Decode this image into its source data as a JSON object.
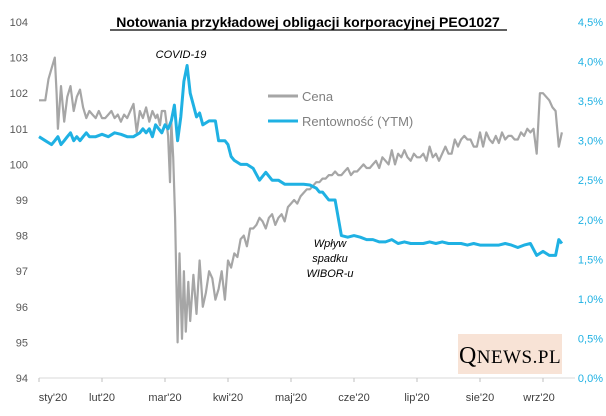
{
  "chart_data": {
    "type": "line",
    "title": "Notowania  przykładowej  obligacji  korporacyjnej  PEO1027",
    "x_ticks": [
      "sty'20",
      "lut'20",
      "mar'20",
      "kwi'20",
      "maj'20",
      "cze'20",
      "lip'20",
      "sie'20",
      "wrz'20"
    ],
    "y_left": {
      "ticks": [
        "94",
        "95",
        "96",
        "97",
        "98",
        "99",
        "100",
        "101",
        "102",
        "103",
        "104"
      ],
      "ylim": [
        94,
        104
      ]
    },
    "y_right": {
      "ticks": [
        "0,0%",
        "0,5%",
        "1,0%",
        "1,5%",
        "2,0%",
        "2,5%",
        "3,0%",
        "3,5%",
        "4,0%",
        "4,5%"
      ],
      "ylim": [
        0,
        4.5
      ]
    },
    "grid": false,
    "legend_position": "upper-center-right",
    "annotations": [
      {
        "lines": [
          "COVID-19"
        ]
      },
      {
        "lines": [
          "Wpływ",
          "spadku",
          "WIBOR-u"
        ]
      }
    ],
    "series": [
      {
        "name": "Cena",
        "axis": "left",
        "color": "#a6a6a6",
        "x": [
          0,
          0.1,
          0.15,
          0.2,
          0.25,
          0.28,
          0.3,
          0.35,
          0.4,
          0.45,
          0.5,
          0.55,
          0.6,
          0.65,
          0.7,
          0.75,
          0.8,
          0.85,
          0.9,
          0.95,
          1.0,
          1.05,
          1.1,
          1.15,
          1.2,
          1.25,
          1.3,
          1.35,
          1.4,
          1.45,
          1.5,
          1.55,
          1.6,
          1.65,
          1.7,
          1.75,
          1.8,
          1.85,
          1.88,
          1.92,
          1.95,
          2.0,
          2.05,
          2.08,
          2.1,
          2.13,
          2.16,
          2.2,
          2.23,
          2.27,
          2.3,
          2.33,
          2.37,
          2.4,
          2.45,
          2.5,
          2.55,
          2.6,
          2.65,
          2.7,
          2.75,
          2.8,
          2.85,
          2.9,
          2.95,
          3.0,
          3.05,
          3.1,
          3.15,
          3.2,
          3.25,
          3.3,
          3.35,
          3.4,
          3.45,
          3.5,
          3.55,
          3.6,
          3.65,
          3.7,
          3.75,
          3.8,
          3.85,
          3.9,
          3.95,
          4.0,
          4.05,
          4.1,
          4.15,
          4.2,
          4.25,
          4.3,
          4.35,
          4.4,
          4.45,
          4.5,
          4.55,
          4.6,
          4.65,
          4.7,
          4.75,
          4.8,
          4.85,
          4.9,
          4.95,
          5.0,
          5.05,
          5.1,
          5.15,
          5.2,
          5.25,
          5.3,
          5.35,
          5.4,
          5.45,
          5.5,
          5.55,
          5.6,
          5.65,
          5.7,
          5.75,
          5.8,
          5.85,
          5.9,
          5.95,
          6.0,
          6.05,
          6.1,
          6.15,
          6.2,
          6.25,
          6.3,
          6.35,
          6.4,
          6.45,
          6.5,
          6.55,
          6.6,
          6.65,
          6.7,
          6.75,
          6.8,
          6.85,
          6.9,
          6.95,
          7.0,
          7.05,
          7.1,
          7.15,
          7.2,
          7.25,
          7.3,
          7.35,
          7.4,
          7.45,
          7.5,
          7.55,
          7.6,
          7.65,
          7.7,
          7.75,
          7.8,
          7.85,
          7.9,
          7.95,
          8.0,
          8.05,
          8.1,
          8.15,
          8.2,
          8.25,
          8.3
        ],
        "values": [
          101.8,
          101.8,
          102.4,
          102.7,
          103.0,
          102.0,
          101.0,
          102.2,
          101.2,
          101.9,
          102.2,
          101.5,
          101.9,
          102.1,
          101.6,
          101.3,
          101.5,
          101.4,
          101.3,
          101.5,
          101.3,
          101.3,
          101.4,
          101.5,
          101.3,
          101.4,
          101.2,
          101.4,
          101.3,
          101.5,
          101.7,
          100.9,
          101.5,
          101.3,
          101.6,
          101.2,
          101.5,
          101.3,
          101.4,
          101.1,
          101.5,
          101.5,
          100.8,
          99.5,
          101.2,
          100.2,
          98.5,
          95.0,
          97.5,
          95.1,
          97.0,
          95.3,
          96.7,
          95.6,
          96.9,
          95.8,
          97.3,
          96.0,
          96.4,
          97.0,
          96.8,
          96.2,
          96.5,
          97.0,
          96.2,
          97.3,
          97.1,
          97.5,
          97.4,
          97.9,
          98.0,
          97.7,
          98.2,
          98.2,
          98.3,
          98.5,
          98.4,
          98.2,
          98.5,
          98.6,
          98.3,
          98.5,
          98.6,
          98.4,
          98.8,
          98.9,
          99.0,
          98.9,
          99.1,
          99.2,
          99.3,
          99.3,
          99.4,
          99.5,
          99.5,
          99.6,
          99.6,
          99.7,
          99.7,
          99.8,
          99.7,
          99.7,
          99.8,
          99.9,
          99.7,
          99.8,
          99.8,
          99.9,
          100.0,
          99.9,
          99.9,
          100.0,
          100.1,
          99.9,
          100.2,
          100.1,
          100.0,
          100.4,
          100.0,
          100.3,
          100.2,
          100.4,
          100.2,
          100.1,
          100.3,
          100.2,
          100.2,
          100.3,
          100.1,
          100.5,
          100.2,
          100.3,
          100.1,
          100.3,
          100.5,
          100.3,
          100.3,
          100.7,
          100.5,
          100.7,
          100.8,
          100.7,
          100.7,
          100.5,
          100.5,
          100.9,
          100.5,
          100.9,
          100.7,
          100.6,
          100.8,
          100.6,
          100.9,
          100.7,
          100.8,
          100.8,
          100.7,
          100.7,
          100.9,
          100.8,
          101.0,
          100.9,
          101.0,
          100.3,
          102.0,
          102.0,
          101.9,
          101.8,
          101.6,
          101.5,
          100.5,
          100.9
        ]
      },
      {
        "name": "Rentowność (YTM)",
        "axis": "right",
        "color": "#1fb1e3",
        "x": [
          0,
          0.1,
          0.2,
          0.25,
          0.3,
          0.35,
          0.4,
          0.45,
          0.5,
          0.55,
          0.6,
          0.65,
          0.7,
          0.75,
          0.8,
          0.9,
          1.0,
          1.1,
          1.2,
          1.3,
          1.4,
          1.5,
          1.6,
          1.65,
          1.7,
          1.75,
          1.8,
          1.85,
          1.9,
          1.95,
          2.0,
          2.05,
          2.1,
          2.15,
          2.2,
          2.25,
          2.3,
          2.35,
          2.4,
          2.45,
          2.5,
          2.55,
          2.6,
          2.7,
          2.8,
          2.85,
          2.9,
          2.95,
          3.0,
          3.05,
          3.1,
          3.2,
          3.3,
          3.4,
          3.5,
          3.6,
          3.7,
          3.8,
          3.9,
          4.0,
          4.1,
          4.2,
          4.3,
          4.35,
          4.4,
          4.45,
          4.5,
          4.6,
          4.7,
          4.8,
          4.9,
          5.0,
          5.1,
          5.2,
          5.3,
          5.4,
          5.5,
          5.6,
          5.7,
          5.8,
          5.9,
          6.0,
          6.1,
          6.2,
          6.3,
          6.4,
          6.5,
          6.6,
          6.7,
          6.8,
          6.9,
          7.0,
          7.1,
          7.2,
          7.3,
          7.4,
          7.5,
          7.6,
          7.7,
          7.8,
          7.9,
          8.0,
          8.1,
          8.2,
          8.25,
          8.3
        ],
        "values": [
          3.05,
          3.0,
          2.95,
          3.0,
          3.05,
          2.95,
          3.0,
          3.05,
          3.1,
          3.0,
          3.05,
          3.0,
          3.05,
          3.1,
          3.05,
          3.05,
          3.08,
          3.05,
          3.1,
          3.08,
          3.05,
          3.05,
          3.1,
          3.15,
          3.1,
          3.15,
          3.05,
          3.2,
          3.15,
          3.1,
          3.2,
          3.15,
          3.25,
          3.45,
          3.0,
          3.3,
          3.75,
          3.95,
          3.6,
          3.45,
          3.3,
          3.35,
          3.2,
          3.25,
          3.25,
          3.0,
          3.0,
          3.0,
          2.95,
          2.8,
          2.75,
          2.7,
          2.7,
          2.65,
          2.5,
          2.6,
          2.5,
          2.5,
          2.45,
          2.45,
          2.45,
          2.45,
          2.44,
          2.42,
          2.4,
          2.35,
          2.35,
          2.25,
          2.25,
          1.8,
          1.78,
          1.8,
          1.78,
          1.75,
          1.75,
          1.72,
          1.72,
          1.75,
          1.7,
          1.72,
          1.7,
          1.7,
          1.7,
          1.72,
          1.7,
          1.72,
          1.7,
          1.7,
          1.7,
          1.68,
          1.7,
          1.68,
          1.68,
          1.68,
          1.68,
          1.7,
          1.68,
          1.65,
          1.68,
          1.7,
          1.55,
          1.6,
          1.55,
          1.55,
          1.75,
          1.7
        ]
      }
    ]
  }
}
